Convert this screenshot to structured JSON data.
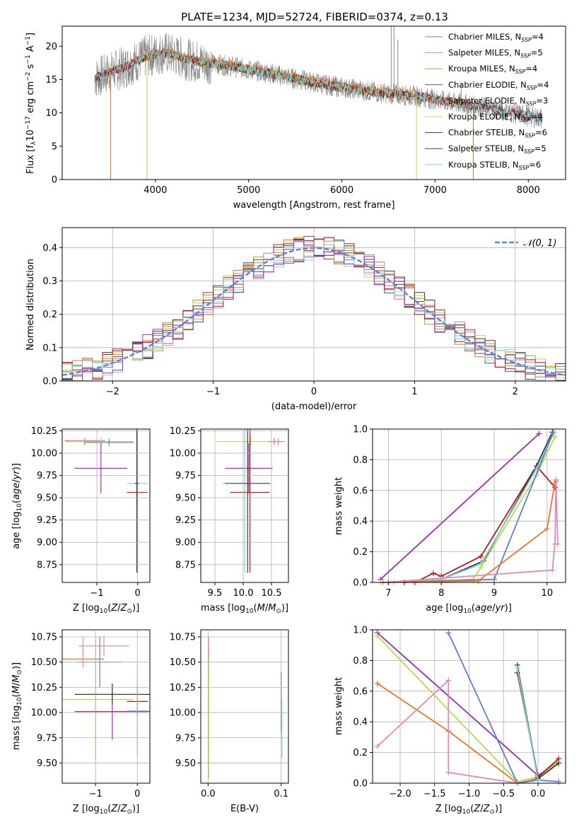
{
  "colors": {
    "chabrier_miles": "#5b7fd4",
    "salpeter_miles": "#e687b8",
    "kroupa_miles": "#c09a3a",
    "chabrier_elodie": "#555555",
    "salpeter_elodie": "#e8762b",
    "kroupa_elodie": "#bcd94a",
    "chabrier_stelib": "#3a3a3a",
    "salpeter_stelib": "#b01c1c",
    "kroupa_stelib": "#7fd3de",
    "purple": "#9b2fae",
    "gray_spec": "#808080",
    "normal": "#5b87d6"
  },
  "chart_data": [
    {
      "id": "spectrum",
      "type": "line",
      "title": "PLATE=1234, MJD=52724, FIBERID=0374, z=0.13",
      "xlabel": "wavelength [Angstrom, rest frame]",
      "ylabel": "Flux [f_λ 10^-17 erg cm^-2 s^-1 A^-1]",
      "xlim": [
        3000,
        8400
      ],
      "ylim": [
        0,
        23
      ],
      "xticks": [
        "4000",
        "5000",
        "6000",
        "7000",
        "8000"
      ],
      "yticks": [
        "0",
        "5",
        "10",
        "15",
        "20"
      ],
      "legend": [
        {
          "label": "Chabrier MILES, N",
          "sub": "SSP",
          "val": "=4",
          "color": "chabrier_miles"
        },
        {
          "label": "Salpeter MILES, N",
          "sub": "SSP",
          "val": "=5",
          "color": "salpeter_miles"
        },
        {
          "label": "Kroupa MILES, N",
          "sub": "SSP",
          "val": "=4",
          "color": "kroupa_miles"
        },
        {
          "label": "Chabrier ELODIE, N",
          "sub": "SSP",
          "val": "=4",
          "color": "chabrier_elodie"
        },
        {
          "label": "Salpeter ELODIE, N",
          "sub": "SSP",
          "val": "=3",
          "color": "salpeter_elodie"
        },
        {
          "label": "Kroupa ELODIE, N",
          "sub": "SSP",
          "val": "=4",
          "color": "kroupa_elodie"
        },
        {
          "label": "Chabrier STELIB, N",
          "sub": "SSP",
          "val": "=6",
          "color": "chabrier_stelib"
        },
        {
          "label": "Salpeter STELIB, N",
          "sub": "SSP",
          "val": "=5",
          "color": "salpeter_stelib"
        },
        {
          "label": "Kroupa STELIB, N",
          "sub": "SSP",
          "val": "=6",
          "color": "kroupa_stelib"
        }
      ],
      "legend_position": "top-right",
      "continuum": {
        "x": [
          3350,
          3500,
          3700,
          3900,
          4100,
          4400,
          4800,
          5200,
          5600,
          6000,
          6400,
          6800,
          7200,
          7600,
          8000,
          8150
        ],
        "y": [
          15.2,
          16.0,
          17.0,
          18.5,
          19.0,
          17.8,
          17.0,
          16.0,
          14.8,
          13.8,
          13.0,
          12.5,
          11.5,
          10.7,
          9.5,
          9.2
        ]
      }
    },
    {
      "id": "residuals",
      "type": "histogram",
      "xlabel": "(data-model)/error",
      "ylabel": "Normed distribution",
      "xlim": [
        -2.5,
        2.5
      ],
      "ylim": [
        0,
        0.46
      ],
      "xticks": [
        "−2",
        "−1",
        "0",
        "1",
        "2"
      ],
      "yticks": [
        "0.0",
        "0.1",
        "0.2",
        "0.3",
        "0.4"
      ],
      "grid": true,
      "legend_position": "top-right",
      "normal_label": "N(0,1)",
      "bin_width": 0.1
    },
    {
      "id": "age_vs_Z",
      "type": "scatter",
      "xlabel": "Z [log10(Z/Z⊙)]",
      "ylabel": "age  [log10(age/yr)]",
      "xlim": [
        -1.85,
        0.3
      ],
      "ylim": [
        8.55,
        10.27
      ],
      "xticks": [
        {
          "v": -1,
          "l": "−1"
        },
        {
          "v": 0,
          "l": "0"
        }
      ],
      "yticks": [
        "8.75",
        "9.00",
        "9.25",
        "9.50",
        "9.75",
        "10.00",
        "10.25"
      ],
      "grid": true,
      "points": [
        {
          "c": "salpeter_elodie",
          "x": -1.3,
          "y": 10.13,
          "xe": 0.45,
          "ye": 0.04
        },
        {
          "c": "salpeter_miles",
          "x": -1.3,
          "y": 10.14,
          "xe": 0.5,
          "ye": 0.03
        },
        {
          "c": "kroupa_elodie",
          "x": -0.9,
          "y": 10.13,
          "xe": 0.8,
          "ye": 0.05
        },
        {
          "c": "chabrier_miles",
          "x": -0.7,
          "y": 10.12,
          "xe": 0.6,
          "ye": 0.04
        },
        {
          "c": "purple",
          "x": -0.9,
          "y": 9.83,
          "xe": 0.65,
          "ye": 0.28
        },
        {
          "c": "kroupa_stelib",
          "x": -0.01,
          "y": 9.66,
          "xe": 0.25,
          "ye": 0.9
        },
        {
          "c": "salpeter_stelib",
          "x": -0.01,
          "y": 9.56,
          "xe": 0.25,
          "ye": 0.9
        },
        {
          "c": "chabrier_stelib",
          "x": -0.02,
          "y": 9.66,
          "xe": 0.05,
          "ye": 1.0
        }
      ]
    },
    {
      "id": "age_vs_mass",
      "type": "scatter",
      "xlabel": "mass [log10(M/M⊙)]",
      "xlim": [
        9.25,
        10.8
      ],
      "ylim": [
        8.55,
        10.27
      ],
      "xticks": [
        {
          "v": 9.5,
          "l": "9.5"
        },
        {
          "v": 10,
          "l": "10.0"
        },
        {
          "v": 10.5,
          "l": "10.5"
        }
      ],
      "yticks": [
        "8.75",
        "9.00",
        "9.25",
        "9.50",
        "9.75",
        "10.00",
        "10.25"
      ],
      "grid": true,
      "points": [
        {
          "c": "kroupa_elodie",
          "x": 10.13,
          "y": 10.13,
          "xe": 0.6,
          "ye": 0.05
        },
        {
          "c": "salpeter_elodie",
          "x": 10.55,
          "y": 10.13,
          "xe": 0.1,
          "ye": 0.04
        },
        {
          "c": "salpeter_miles",
          "x": 10.62,
          "y": 10.13,
          "xe": 0.12,
          "ye": 0.04
        },
        {
          "c": "purple",
          "x": 10.1,
          "y": 9.83,
          "xe": 0.42,
          "ye": 0.28
        },
        {
          "c": "kroupa_stelib",
          "x": 10.03,
          "y": 9.66,
          "xe": 0.4,
          "ye": 1.0
        },
        {
          "c": "chabrier_stelib",
          "x": 10.08,
          "y": 9.66,
          "xe": 0.4,
          "ye": 1.0
        },
        {
          "c": "salpeter_stelib",
          "x": 10.12,
          "y": 9.56,
          "xe": 0.35,
          "ye": 0.9
        }
      ]
    },
    {
      "id": "weight_vs_age",
      "type": "line",
      "xlabel": "age  [log10(age/yr)]",
      "ylabel": "mass weight",
      "xlim": [
        6.7,
        10.35
      ],
      "ylim": [
        0,
        1
      ],
      "xticks": [
        {
          "v": 7,
          "l": "7"
        },
        {
          "v": 8,
          "l": "8"
        },
        {
          "v": 9,
          "l": "9"
        },
        {
          "v": 10,
          "l": "10"
        }
      ],
      "yticks": [
        "0.0",
        "0.2",
        "0.4",
        "0.6",
        "0.8",
        "1.0"
      ],
      "grid": true,
      "series": [
        {
          "c": "purple",
          "x": [
            6.85,
            9.85
          ],
          "y": [
            0.02,
            0.97
          ]
        },
        {
          "c": "salpeter_stelib",
          "x": [
            7.5,
            7.85,
            8.0,
            8.75,
            9.8,
            10.15
          ],
          "y": [
            0.0,
            0.06,
            0.04,
            0.17,
            0.76,
            0.62
          ]
        },
        {
          "c": "chabrier_stelib",
          "x": [
            7.3,
            8.0,
            8.8,
            9.8,
            10.1
          ],
          "y": [
            0.0,
            0.02,
            0.14,
            0.76,
            0.98
          ]
        },
        {
          "c": "kroupa_stelib",
          "x": [
            7.1,
            8.0,
            8.75,
            9.8,
            10.12
          ],
          "y": [
            0.0,
            0.02,
            0.12,
            0.74,
            0.97
          ]
        },
        {
          "c": "kroupa_elodie",
          "x": [
            6.85,
            8.6,
            8.75,
            9.8,
            10.15
          ],
          "y": [
            0.0,
            0.02,
            0.1,
            0.7,
            0.95
          ]
        },
        {
          "c": "chabrier_miles",
          "x": [
            7.0,
            9.0,
            10.12
          ],
          "y": [
            0.0,
            0.02,
            0.98
          ]
        },
        {
          "c": "salpeter_elodie",
          "x": [
            6.9,
            8.7,
            10.0,
            10.15,
            10.17
          ],
          "y": [
            0.0,
            0.01,
            0.35,
            0.65,
            0.66
          ]
        },
        {
          "c": "salpeter_miles",
          "x": [
            6.9,
            10.1,
            10.15,
            10.17,
            10.2
          ],
          "y": [
            0.0,
            0.08,
            0.25,
            0.67,
            0.25
          ]
        }
      ]
    },
    {
      "id": "mass_vs_Z",
      "type": "scatter",
      "xlabel": "Z [log10(Z/Z⊙)]",
      "ylabel": "mass [log10(M/M⊙)]",
      "xlim": [
        -1.8,
        0.3
      ],
      "ylim": [
        9.3,
        10.82
      ],
      "xticks": [
        {
          "v": -1,
          "l": "−1"
        },
        {
          "v": 0,
          "l": "0"
        }
      ],
      "yticks": [
        "9.50",
        "9.75",
        "10.00",
        "10.25",
        "10.50",
        "10.75"
      ],
      "grid": true,
      "points": [
        {
          "c": "salpeter_elodie",
          "x": -1.3,
          "y": 10.53,
          "xe": 0.5,
          "ye": 0.08
        },
        {
          "c": "salpeter_miles",
          "x": -0.8,
          "y": 10.66,
          "xe": 0.6,
          "ye": 0.1
        },
        {
          "c": "chabrier_miles",
          "x": -0.9,
          "y": 10.5,
          "xe": 0.55,
          "ye": 0.25
        },
        {
          "c": "kroupa_elodie",
          "x": -1.0,
          "y": 10.13,
          "xe": 0.9,
          "ye": 0.6
        },
        {
          "c": "purple",
          "x": -0.6,
          "y": 10.01,
          "xe": 0.9,
          "ye": 0.28
        },
        {
          "c": "chabrier_stelib",
          "x": -0.6,
          "y": 10.18,
          "xe": 0.9,
          "ye": 0.1
        },
        {
          "c": "salpeter_stelib",
          "x": 0.0,
          "y": 10.11,
          "xe": 0.25,
          "ye": 0.15
        },
        {
          "c": "kroupa_stelib",
          "x": 0.0,
          "y": 10.02,
          "xe": 0.25,
          "ye": 0.45
        },
        {
          "c": "salpeter_miles",
          "x": -1.3,
          "y": 10.6,
          "xe": 0.01,
          "ye": 0.15
        }
      ]
    },
    {
      "id": "mass_vs_ebv",
      "type": "scatter",
      "xlabel": "E(B-V)",
      "xlim": [
        -0.01,
        0.11
      ],
      "ylim": [
        9.3,
        10.82
      ],
      "xticks": [
        {
          "v": 0.0,
          "l": "0.0"
        },
        {
          "v": 0.1,
          "l": "0.1"
        }
      ],
      "yticks": [
        "9.50",
        "9.75",
        "10.00",
        "10.25",
        "10.50",
        "10.75"
      ],
      "grid": true,
      "points": [
        {
          "c": "salpeter_miles",
          "x": 0.001,
          "y": 10.55,
          "xe": 0.0,
          "ye": 0.2
        },
        {
          "c": "kroupa_elodie",
          "x": 0.001,
          "y": 9.95,
          "xe": 0.0,
          "ye": 0.6
        },
        {
          "c": "salpeter_stelib",
          "x": 0.1,
          "y": 10.1,
          "xe": 0.0,
          "ye": 0.3
        },
        {
          "c": "kroupa_stelib",
          "x": 0.101,
          "y": 9.85,
          "xe": 0.0,
          "ye": 0.3
        }
      ]
    },
    {
      "id": "weight_vs_Z",
      "type": "line",
      "xlabel": "Z [log10(Z/Z⊙)]",
      "ylabel": "mass weight",
      "xlim": [
        -2.4,
        0.4
      ],
      "ylim": [
        0,
        1
      ],
      "xticks": [
        {
          "v": -2,
          "l": "−2.0"
        },
        {
          "v": -1.5,
          "l": "−1.5"
        },
        {
          "v": -1,
          "l": "−1.0"
        },
        {
          "v": -0.5,
          "l": "−0.5"
        },
        {
          "v": 0,
          "l": "0.0"
        }
      ],
      "yticks": [
        "0.0",
        "0.2",
        "0.4",
        "0.6",
        "0.8",
        "1.0"
      ],
      "grid": true,
      "series": [
        {
          "c": "purple",
          "x": [
            -2.33,
            0.0,
            0.3
          ],
          "y": [
            0.98,
            0.05,
            0.14
          ]
        },
        {
          "c": "kroupa_elodie",
          "x": [
            -2.33,
            -0.3,
            0.0,
            0.3
          ],
          "y": [
            0.96,
            0.01,
            0.04,
            0.14
          ]
        },
        {
          "c": "salpeter_elodie",
          "x": [
            -2.33,
            -1.3,
            -0.3,
            0.0
          ],
          "y": [
            0.65,
            0.34,
            0.0,
            0.03
          ]
        },
        {
          "c": "chabrier_miles",
          "x": [
            -1.3,
            -0.3,
            0.0,
            0.3
          ],
          "y": [
            0.98,
            0.0,
            0.02,
            0.01
          ]
        },
        {
          "c": "salpeter_miles",
          "x": [
            -2.33,
            -1.3,
            -1.3,
            -0.3
          ],
          "y": [
            0.24,
            0.67,
            0.07,
            0.0
          ]
        },
        {
          "c": "salpeter_stelib",
          "x": [
            -0.3,
            0.0,
            0.3
          ],
          "y": [
            0.72,
            0.04,
            0.16
          ]
        },
        {
          "c": "chabrier_stelib",
          "x": [
            -0.3,
            0.0,
            0.3
          ],
          "y": [
            0.77,
            0.03,
            0.13
          ]
        },
        {
          "c": "kroupa_stelib",
          "x": [
            -0.3,
            0.0
          ],
          "y": [
            0.75,
            0.02
          ]
        }
      ]
    }
  ]
}
